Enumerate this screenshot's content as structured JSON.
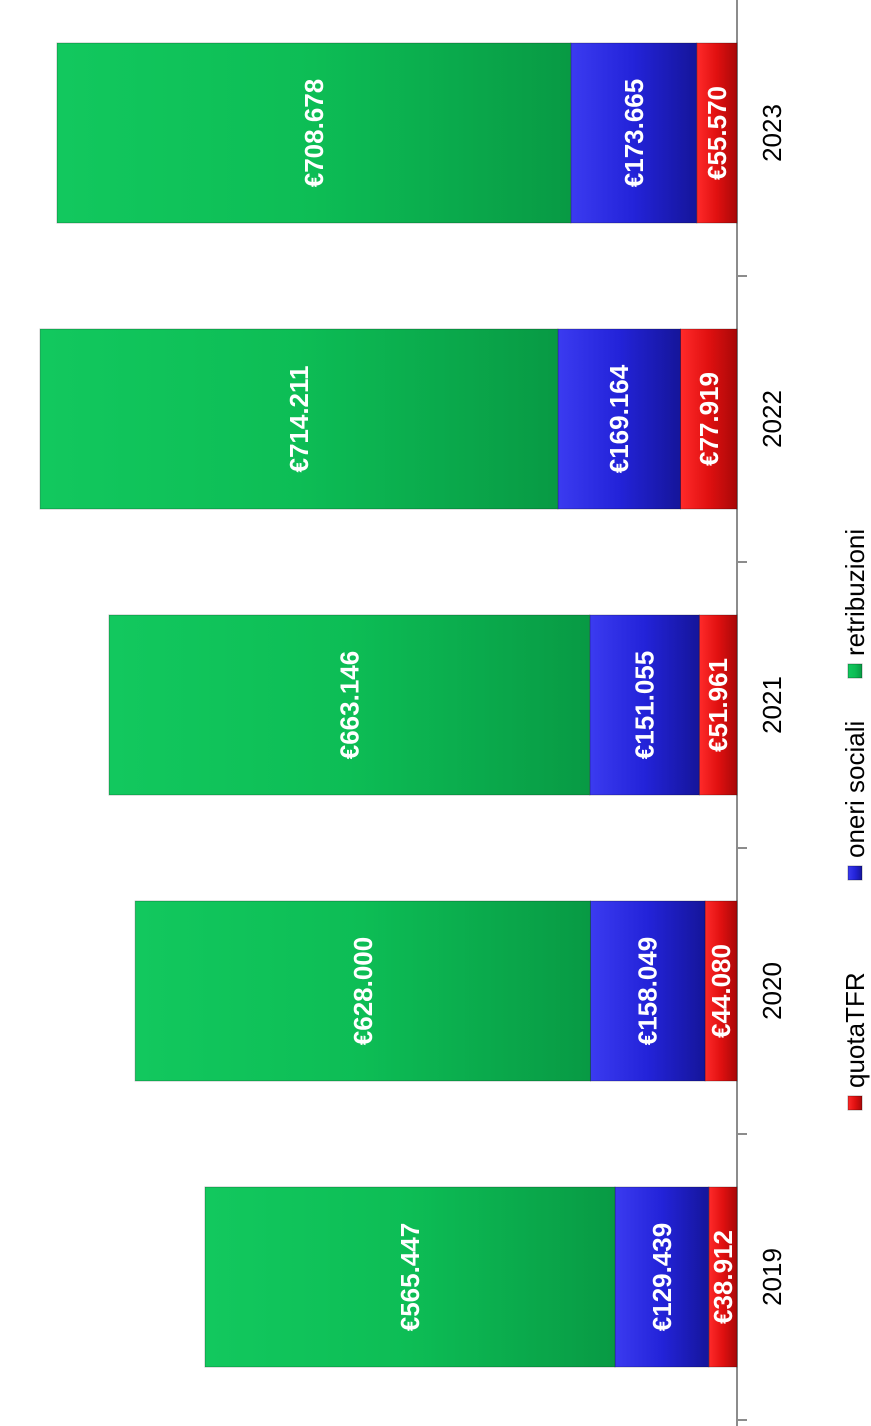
{
  "chart_data": {
    "type": "bar",
    "orientation": "horizontal-stacked",
    "title": "",
    "xlabel": "",
    "ylabel": "",
    "categories": [
      "2019",
      "2020",
      "2021",
      "2022",
      "2023"
    ],
    "series": [
      {
        "name": "quotaTFR",
        "color": "#e01010",
        "values": [
          38912,
          44080,
          51961,
          77919,
          55570
        ],
        "labels": [
          "€38.912",
          "€44.080",
          "€51.961",
          "€77.919",
          "€55.570"
        ]
      },
      {
        "name": "oneri sociali",
        "color": "#2323d9",
        "values": [
          129439,
          158049,
          151055,
          169164,
          173665
        ],
        "labels": [
          "€129.439",
          "€158.049",
          "€151.055",
          "€169.164",
          "€173.665"
        ]
      },
      {
        "name": "retribuzioni",
        "color": "#0dbd55",
        "values": [
          565447,
          628000,
          663146,
          714211,
          708678
        ],
        "labels": [
          "€565.447",
          "€628.000",
          "€663.146",
          "€714.211",
          "€708.678"
        ]
      }
    ],
    "legend_position": "bottom",
    "grid": false,
    "rotated": true
  }
}
